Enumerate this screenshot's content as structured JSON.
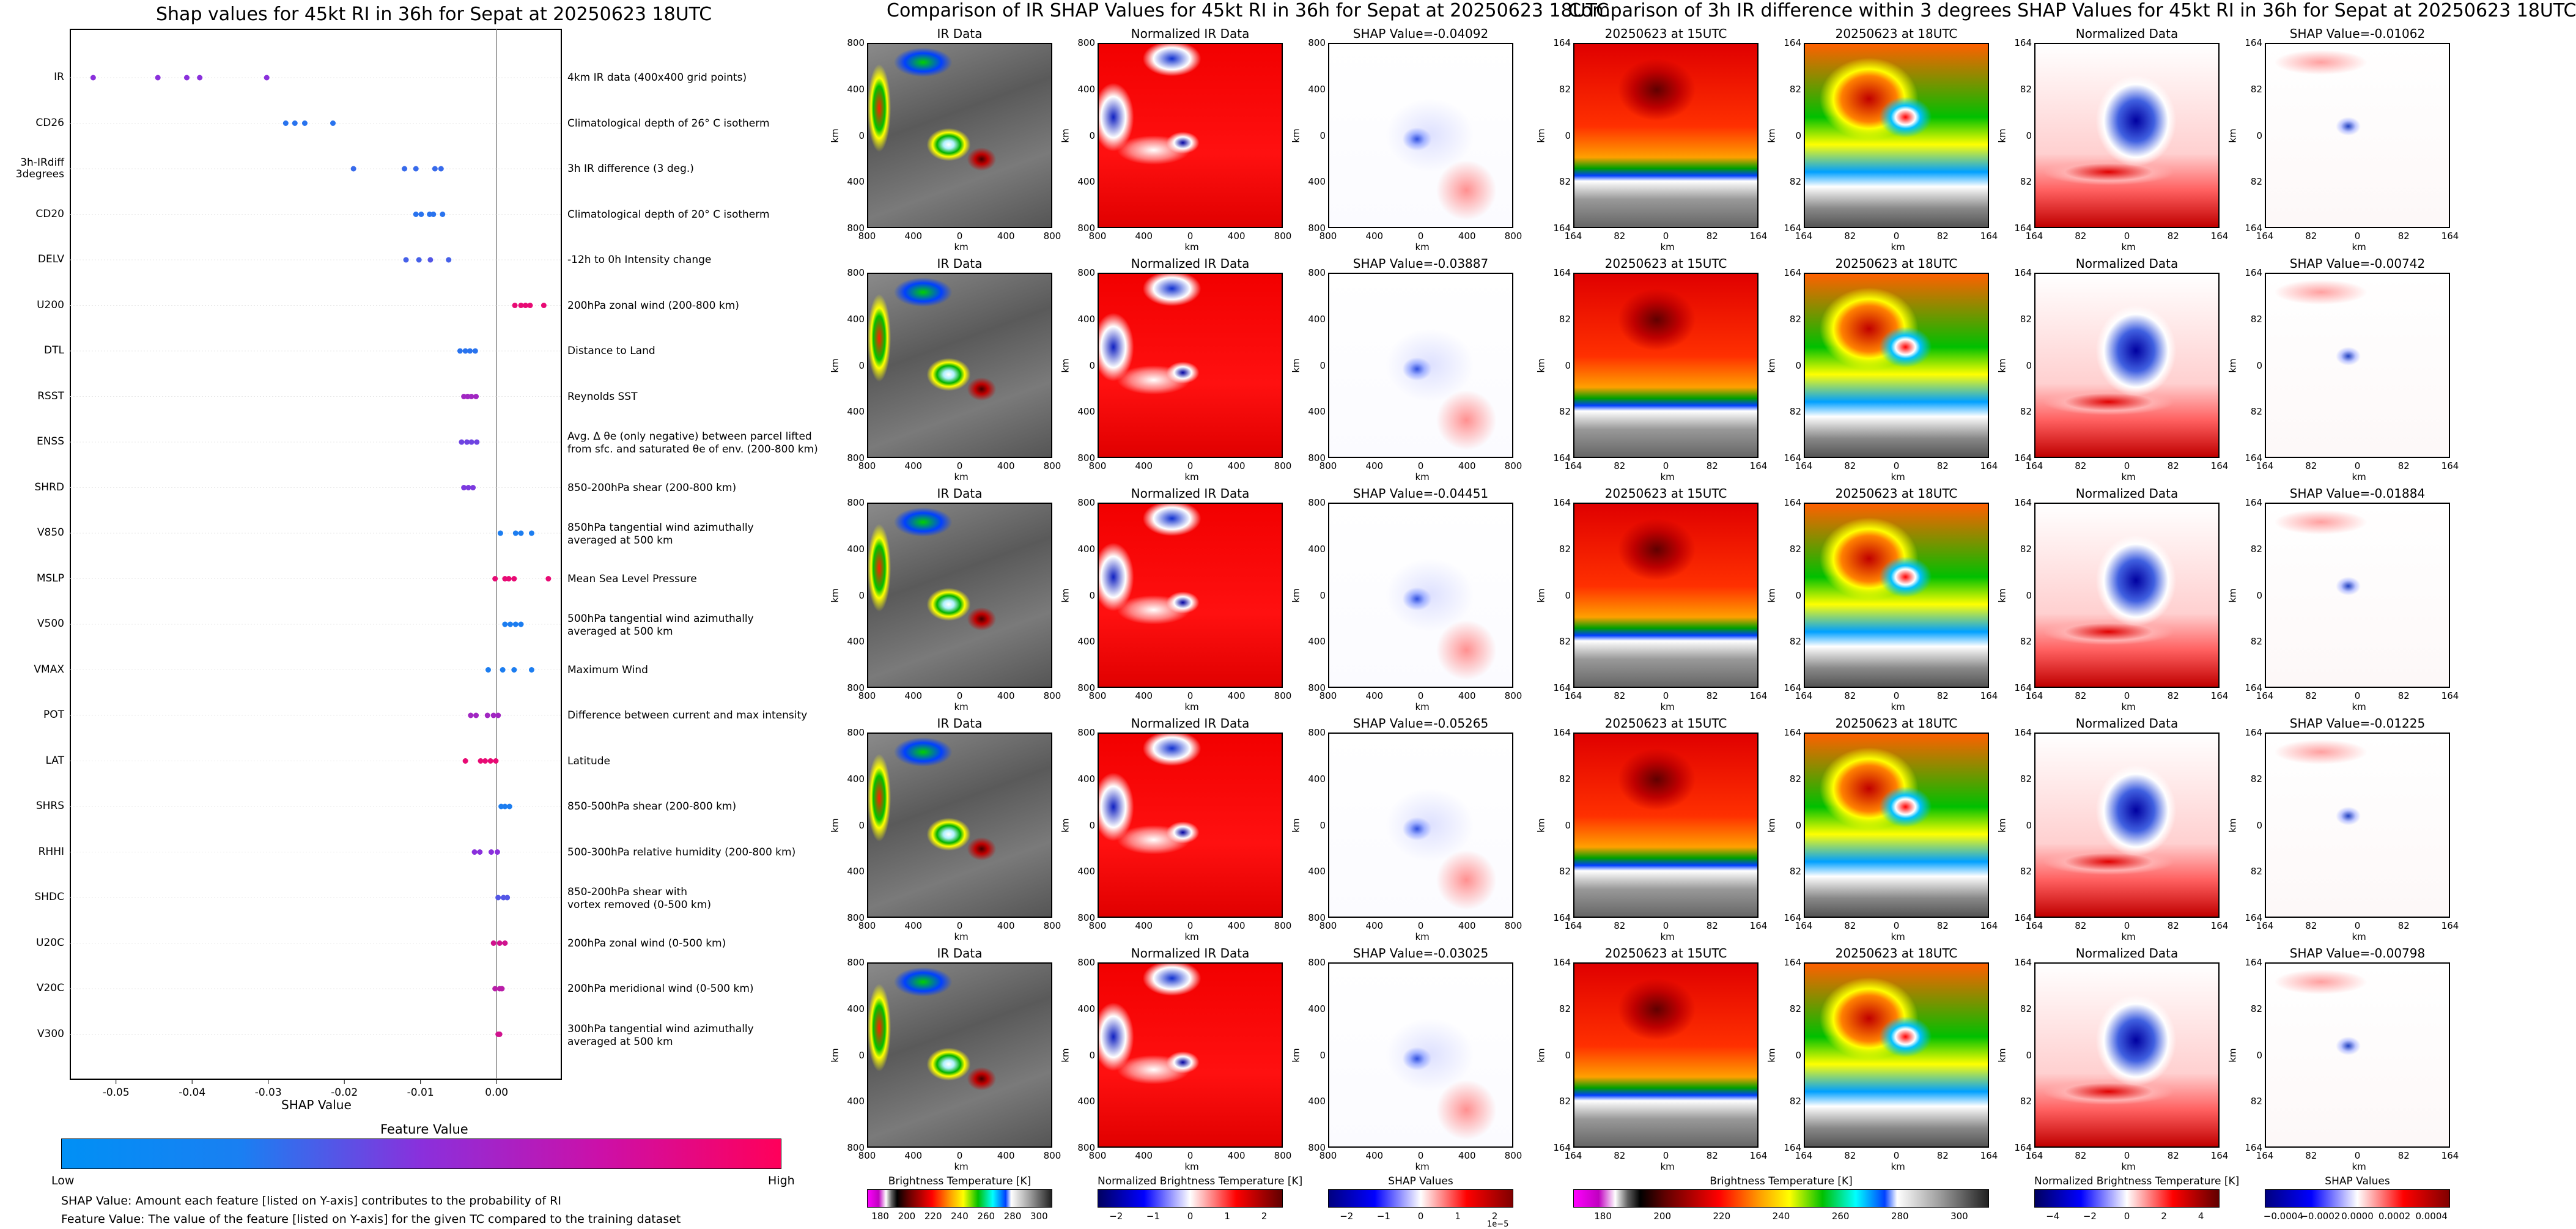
{
  "left": {
    "title": "Shap values for 45kt RI in 36h for Sepat at 20250623 18UTC",
    "xlabel": "SHAP Value",
    "xticks": [
      "-0.05",
      "-0.04",
      "-0.03",
      "-0.02",
      "-0.01",
      "0.00"
    ],
    "legend_title": "Feature Value",
    "legend_low": "Low",
    "legend_high": "High",
    "note1": "SHAP Value: Amount each feature [listed on Y-axis] contributes to the probability of RI",
    "note2": "Feature Value: The value of the feature [listed on Y-axis] for the given TC compared to the training dataset",
    "features": [
      {
        "name": "IR",
        "desc": "4km IR data (400x400 grid points)"
      },
      {
        "name": "CD26",
        "desc": "Climatological depth of 26° C isotherm"
      },
      {
        "name": "3h-IRdiff\n3degrees",
        "desc": "3h IR difference (3 deg.)"
      },
      {
        "name": "CD20",
        "desc": "Climatological depth of 20° C isotherm"
      },
      {
        "name": "DELV",
        "desc": "-12h to 0h Intensity change"
      },
      {
        "name": "U200",
        "desc": "200hPa zonal wind (200-800 km)"
      },
      {
        "name": "DTL",
        "desc": "Distance to Land"
      },
      {
        "name": "RSST",
        "desc": "Reynolds SST"
      },
      {
        "name": "ENSS",
        "desc": "Avg. Δ θe (only negative) between parcel lifted\nfrom sfc. and saturated θe of env. (200-800 km)"
      },
      {
        "name": "SHRD",
        "desc": "850-200hPa shear (200-800 km)"
      },
      {
        "name": "V850",
        "desc": "850hPa tangential wind azimuthally\naveraged at 500 km"
      },
      {
        "name": "MSLP",
        "desc": "Mean Sea Level Pressure"
      },
      {
        "name": "V500",
        "desc": "500hPa tangential wind azimuthally\naveraged at 500 km"
      },
      {
        "name": "VMAX",
        "desc": "Maximum Wind"
      },
      {
        "name": "POT",
        "desc": "Difference between current and max intensity"
      },
      {
        "name": "LAT",
        "desc": "Latitude"
      },
      {
        "name": "SHRS",
        "desc": "850-500hPa shear (200-800 km)"
      },
      {
        "name": "RHHI",
        "desc": "500-300hPa relative humidity (200-800 km)"
      },
      {
        "name": "SHDC",
        "desc": "850-200hPa shear with\nvortex removed (0-500 km)"
      },
      {
        "name": "U20C",
        "desc": "200hPa zonal wind (0-500 km)"
      },
      {
        "name": "V20C",
        "desc": "200hPa meridional wind (0-500 km)"
      },
      {
        "name": "V300",
        "desc": "300hPa tangential wind azimuthally\naveraged at 500 km"
      }
    ]
  },
  "mid": {
    "title": "Comparison of IR SHAP Values for 45kt RI in 36h for Sepat at 20250623 18UTC",
    "col_ir": "IR Data",
    "col_norm": "Normalized IR Data",
    "shap_titles": [
      "SHAP Value=-0.04092",
      "SHAP Value=-0.03887",
      "SHAP Value=-0.04451",
      "SHAP Value=-0.05265",
      "SHAP Value=-0.03025"
    ],
    "ticks": [
      "800",
      "400",
      "0",
      "400",
      "800"
    ],
    "axis_label": "km",
    "cb1_label": "Brightness Temperature [K]",
    "cb1_ticks": [
      "180",
      "200",
      "220",
      "240",
      "260",
      "280",
      "300"
    ],
    "cb2_label": "Normalized Brightness Temperature [K]",
    "cb2_ticks": [
      "−2",
      "−1",
      "0",
      "1",
      "2"
    ],
    "cb3_label": "SHAP Values",
    "cb3_ticks": [
      "−2",
      "−1",
      "0",
      "1",
      "2"
    ],
    "cb3_exp": "1e−5"
  },
  "right": {
    "title": "Comparison of 3h IR difference within 3 degrees SHAP Values for 45kt RI in 36h for Sepat at 20250623 18UTC",
    "col_15": "20250623 at 15UTC",
    "col_18": "20250623 at 18UTC",
    "col_norm": "Normalized Data",
    "shap_titles": [
      "SHAP Value=-0.01062",
      "SHAP Value=-0.00742",
      "SHAP Value=-0.01884",
      "SHAP Value=-0.01225",
      "SHAP Value=-0.00798"
    ],
    "ticks": [
      "164",
      "82",
      "0",
      "82",
      "164"
    ],
    "axis_label": "km",
    "cb1_label": "Brightness Temperature [K]",
    "cb1_ticks": [
      "180",
      "200",
      "220",
      "240",
      "260",
      "280",
      "300"
    ],
    "cb2_label": "Normalized Brightness Temperature [K]",
    "cb2_ticks": [
      "−4",
      "−2",
      "0",
      "2",
      "4"
    ],
    "cb3_label": "SHAP Values",
    "cb3_ticks": [
      "−0.0004",
      "−0.0002",
      "0.0000",
      "0.0002",
      "0.0004"
    ]
  },
  "chart_data": {
    "type": "scatter",
    "title": "Shap values for 45kt RI in 36h for Sepat at 20250623 18UTC",
    "xlabel": "SHAP Value",
    "xlim": [
      -0.056,
      0.0085
    ],
    "note": "beeswarm summary; color = feature value (0 low .. 1 high)",
    "series": [
      {
        "name": "IR",
        "points": [
          [
            -0.053,
            0.5
          ],
          [
            -0.0445,
            0.5
          ],
          [
            -0.0407,
            0.5
          ],
          [
            -0.039,
            0.5
          ],
          [
            -0.0302,
            0.5
          ]
        ]
      },
      {
        "name": "CD26",
        "points": [
          [
            -0.0277,
            0.15
          ],
          [
            -0.0265,
            0.15
          ],
          [
            -0.0252,
            0.15
          ],
          [
            -0.0215,
            0.15
          ]
        ]
      },
      {
        "name": "3h-IRdiff 3degrees",
        "points": [
          [
            -0.0188,
            0.2
          ],
          [
            -0.0121,
            0.2
          ],
          [
            -0.0106,
            0.2
          ],
          [
            -0.0081,
            0.2
          ],
          [
            -0.0073,
            0.2
          ]
        ]
      },
      {
        "name": "CD20",
        "points": [
          [
            -0.0106,
            0.15
          ],
          [
            -0.0099,
            0.15
          ],
          [
            -0.0088,
            0.15
          ],
          [
            -0.0083,
            0.15
          ],
          [
            -0.0071,
            0.15
          ]
        ]
      },
      {
        "name": "DELV",
        "points": [
          [
            -0.0119,
            0.25
          ],
          [
            -0.0102,
            0.25
          ],
          [
            -0.0087,
            0.3
          ],
          [
            -0.0063,
            0.25
          ]
        ]
      },
      {
        "name": "U200",
        "points": [
          [
            0.0024,
            0.9
          ],
          [
            0.0032,
            0.9
          ],
          [
            0.0038,
            0.9
          ],
          [
            0.0044,
            0.9
          ],
          [
            0.0062,
            0.9
          ]
        ]
      },
      {
        "name": "DTL",
        "points": [
          [
            -0.0048,
            0.15
          ],
          [
            -0.0041,
            0.15
          ],
          [
            -0.0035,
            0.15
          ],
          [
            -0.0028,
            0.15
          ]
        ]
      },
      {
        "name": "RSST",
        "points": [
          [
            -0.0043,
            0.6
          ],
          [
            -0.0038,
            0.6
          ],
          [
            -0.0033,
            0.6
          ],
          [
            -0.0027,
            0.6
          ]
        ]
      },
      {
        "name": "ENSS",
        "points": [
          [
            -0.0046,
            0.4
          ],
          [
            -0.0039,
            0.4
          ],
          [
            -0.0033,
            0.4
          ],
          [
            -0.0026,
            0.4
          ]
        ]
      },
      {
        "name": "SHRD",
        "points": [
          [
            -0.0043,
            0.45
          ],
          [
            -0.0037,
            0.45
          ],
          [
            -0.0031,
            0.45
          ]
        ]
      },
      {
        "name": "V850",
        "points": [
          [
            0.0005,
            0.1
          ],
          [
            0.0025,
            0.1
          ],
          [
            0.0032,
            0.1
          ],
          [
            0.0046,
            0.1
          ]
        ]
      },
      {
        "name": "MSLP",
        "points": [
          [
            -0.0002,
            0.9
          ],
          [
            0.0011,
            0.9
          ],
          [
            0.0016,
            0.9
          ],
          [
            0.0023,
            0.9
          ],
          [
            0.0068,
            0.9
          ]
        ]
      },
      {
        "name": "V500",
        "points": [
          [
            0.0011,
            0.1
          ],
          [
            0.0018,
            0.1
          ],
          [
            0.0025,
            0.1
          ],
          [
            0.0032,
            0.1
          ]
        ]
      },
      {
        "name": "VMAX",
        "points": [
          [
            -0.0011,
            0.1
          ],
          [
            0.0008,
            0.1
          ],
          [
            0.0023,
            0.1
          ],
          [
            0.0046,
            0.1
          ]
        ]
      },
      {
        "name": "POT",
        "points": [
          [
            -0.0034,
            0.6
          ],
          [
            -0.0027,
            0.6
          ],
          [
            -0.0012,
            0.6
          ],
          [
            -0.0004,
            0.6
          ],
          [
            0.0002,
            0.6
          ]
        ]
      },
      {
        "name": "LAT",
        "points": [
          [
            -0.0041,
            0.9
          ],
          [
            -0.0021,
            0.9
          ],
          [
            -0.0015,
            0.9
          ],
          [
            -0.0008,
            0.9
          ],
          [
            -0.0001,
            0.9
          ]
        ]
      },
      {
        "name": "SHRS",
        "points": [
          [
            0.0006,
            0.1
          ],
          [
            0.0011,
            0.1
          ],
          [
            0.0017,
            0.1
          ]
        ]
      },
      {
        "name": "RHHI",
        "points": [
          [
            -0.0029,
            0.5
          ],
          [
            -0.0022,
            0.5
          ],
          [
            -0.0007,
            0.5
          ],
          [
            0.0001,
            0.5
          ]
        ]
      },
      {
        "name": "SHDC",
        "points": [
          [
            0.0002,
            0.3
          ],
          [
            0.0009,
            0.3
          ],
          [
            0.0014,
            0.3
          ]
        ]
      },
      {
        "name": "U20C",
        "points": [
          [
            -0.0004,
            0.8
          ],
          [
            0.0004,
            0.8
          ],
          [
            0.0011,
            0.8
          ]
        ]
      },
      {
        "name": "V20C",
        "points": [
          [
            -0.0002,
            0.7
          ],
          [
            0.0004,
            0.7
          ],
          [
            0.0007,
            0.7
          ]
        ]
      },
      {
        "name": "V300",
        "points": [
          [
            0.0002,
            0.8
          ],
          [
            0.0004,
            0.8
          ]
        ]
      }
    ]
  }
}
